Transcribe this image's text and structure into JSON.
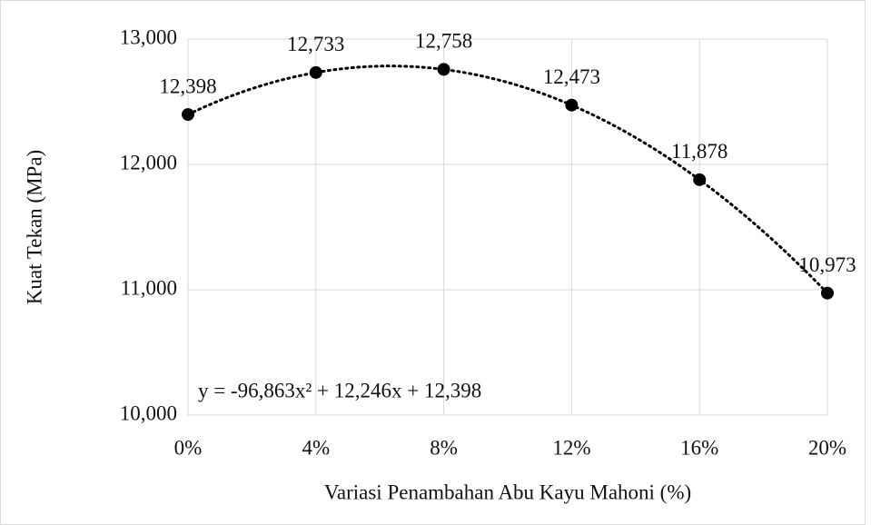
{
  "chart_data": {
    "type": "scatter",
    "x_label": "Variasi Penambahan Abu Kayu Mahoni (%)",
    "y_label": "Kuat Tekan (MPa)",
    "x": [
      0,
      0.04,
      0.08,
      0.12,
      0.16,
      0.2
    ],
    "values": [
      12.398,
      12.733,
      12.758,
      12.473,
      11.878,
      10.973
    ],
    "value_labels": [
      "12,398",
      "12,733",
      "12,758",
      "12,473",
      "11,878",
      "10,973"
    ],
    "color": "#000000",
    "xlim": [
      0,
      0.2
    ],
    "xticks": [
      {
        "value": 0,
        "label": "0%"
      },
      {
        "value": 0.04,
        "label": "4%"
      },
      {
        "value": 0.08,
        "label": "8%"
      },
      {
        "value": 0.12,
        "label": "12%"
      },
      {
        "value": 0.16,
        "label": "16%"
      },
      {
        "value": 0.2,
        "label": "20%"
      }
    ],
    "ylim": [
      10,
      13
    ],
    "yticks": [
      {
        "value": 10,
        "label": "10,000"
      },
      {
        "value": 11,
        "label": "11,000"
      },
      {
        "value": 12,
        "label": "12,000"
      },
      {
        "value": 13,
        "label": "13,000"
      }
    ],
    "grid": true,
    "trendline": {
      "type": "polynomial",
      "coefficients": [
        -96.863,
        12.246,
        12.398
      ],
      "label": "y = -96,863x² + 12,246x + 12,398"
    }
  }
}
